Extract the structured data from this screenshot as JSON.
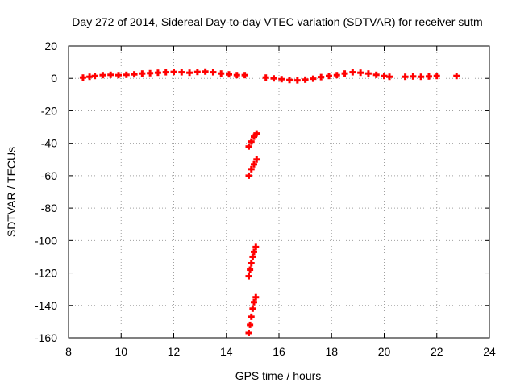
{
  "chart_data": {
    "type": "scatter",
    "title": "Day 272 of 2014, Sidereal Day-to-day VTEC variation (SDTVAR) for receiver sutm",
    "xlabel": "GPS time / hours",
    "ylabel": "SDTVAR / TECUs",
    "xlim": [
      8,
      24
    ],
    "ylim": [
      -160,
      20
    ],
    "xticks": [
      8,
      10,
      12,
      14,
      16,
      18,
      20,
      22,
      24
    ],
    "yticks": [
      20,
      0,
      -20,
      -40,
      -60,
      -80,
      -100,
      -120,
      -140,
      -160
    ],
    "grid": true,
    "marker": "plus",
    "color": "#ff0000",
    "series": [
      {
        "points": [
          [
            8.55,
            0.5
          ],
          [
            8.8,
            1.0
          ],
          [
            9.0,
            1.5
          ],
          [
            9.3,
            2.0
          ],
          [
            9.6,
            2.2
          ],
          [
            9.9,
            2.0
          ],
          [
            10.2,
            2.2
          ],
          [
            10.5,
            2.5
          ],
          [
            10.8,
            3.0
          ],
          [
            11.1,
            3.2
          ],
          [
            11.4,
            3.5
          ],
          [
            11.7,
            3.8
          ],
          [
            12.0,
            4.0
          ],
          [
            12.3,
            3.8
          ],
          [
            12.6,
            3.5
          ],
          [
            12.9,
            4.0
          ],
          [
            13.2,
            4.2
          ],
          [
            13.5,
            3.8
          ],
          [
            13.8,
            3.0
          ],
          [
            14.1,
            2.5
          ],
          [
            14.4,
            2.0
          ],
          [
            14.7,
            2.0
          ],
          [
            15.5,
            0.5
          ],
          [
            15.8,
            0.0
          ],
          [
            16.1,
            -0.5
          ],
          [
            16.4,
            -1.0
          ],
          [
            16.7,
            -1.2
          ],
          [
            17.0,
            -0.8
          ],
          [
            17.3,
            -0.2
          ],
          [
            17.6,
            0.8
          ],
          [
            17.9,
            1.5
          ],
          [
            18.2,
            2.0
          ],
          [
            18.5,
            3.0
          ],
          [
            18.8,
            3.8
          ],
          [
            19.1,
            3.5
          ],
          [
            19.4,
            3.0
          ],
          [
            19.7,
            2.2
          ],
          [
            20.0,
            1.5
          ],
          [
            20.2,
            1.0
          ],
          [
            20.8,
            1.0
          ],
          [
            21.1,
            1.2
          ],
          [
            21.4,
            1.0
          ],
          [
            21.7,
            1.2
          ],
          [
            22.0,
            1.5
          ],
          [
            22.75,
            1.5
          ],
          [
            14.85,
            -42
          ],
          [
            14.95,
            -39
          ],
          [
            15.05,
            -36
          ],
          [
            15.15,
            -34
          ],
          [
            14.85,
            -60
          ],
          [
            14.95,
            -56
          ],
          [
            15.05,
            -53
          ],
          [
            15.15,
            -50
          ],
          [
            14.85,
            -122
          ],
          [
            14.9,
            -118
          ],
          [
            14.95,
            -114
          ],
          [
            15.0,
            -110
          ],
          [
            15.05,
            -107
          ],
          [
            15.12,
            -104
          ],
          [
            14.85,
            -157
          ],
          [
            14.9,
            -152
          ],
          [
            14.95,
            -147
          ],
          [
            15.0,
            -142
          ],
          [
            15.05,
            -138
          ],
          [
            15.12,
            -135
          ]
        ]
      }
    ]
  }
}
